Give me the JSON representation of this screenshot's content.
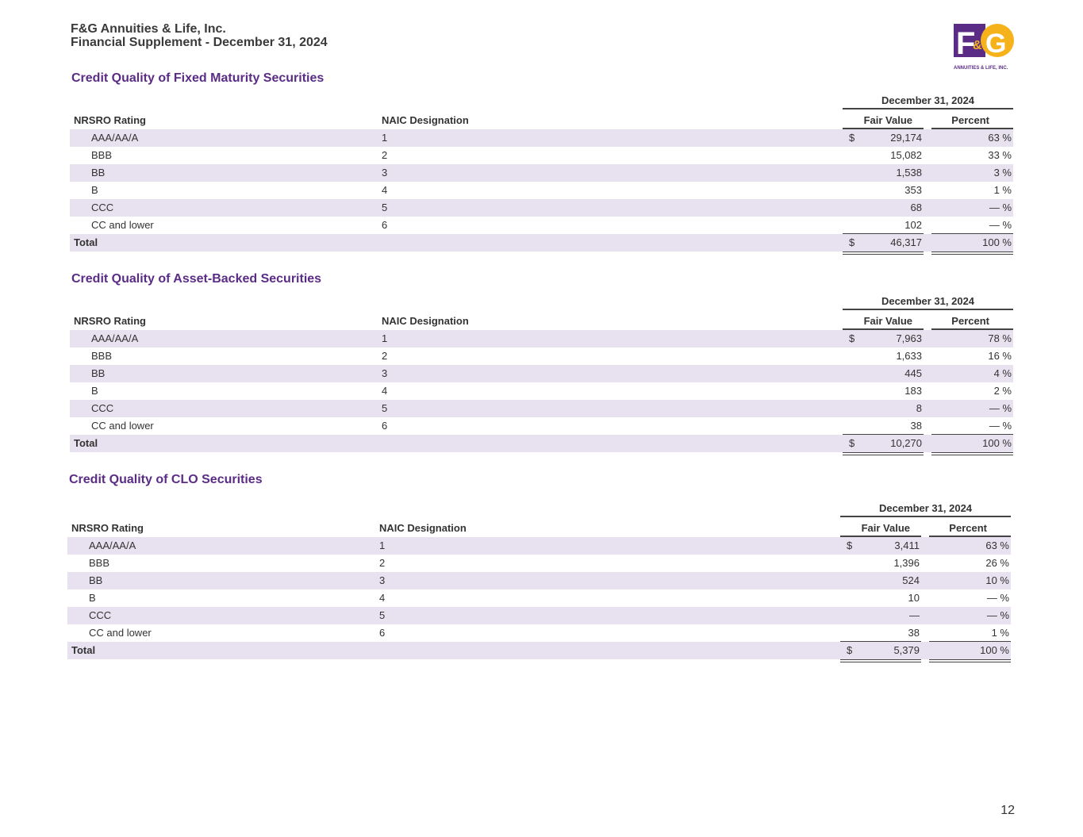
{
  "header": {
    "company": "F&G Annuities & Life, Inc.",
    "subtitle": "Financial Supplement - December 31, 2024"
  },
  "logo": {
    "text": "F&G",
    "tagline": "ANNUITIES & LIFE, INC.",
    "purple": "#5b2c86",
    "gold": "#f5b21b"
  },
  "page_number": "12",
  "sections": [
    {
      "title": "Credit Quality of Fixed Maturity Securities",
      "date": "December 31, 2024",
      "columns": {
        "rating": "NRSRO Rating",
        "naic": "NAIC Designation",
        "fv": "Fair Value",
        "pct": "Percent"
      },
      "rows": [
        {
          "rating": "AAA/AA/A",
          "naic": "1",
          "dollar": "$",
          "fv": "29,174",
          "pct": "63 %"
        },
        {
          "rating": "BBB",
          "naic": "2",
          "dollar": "",
          "fv": "15,082",
          "pct": "33 %"
        },
        {
          "rating": "BB",
          "naic": "3",
          "dollar": "",
          "fv": "1,538",
          "pct": "3 %"
        },
        {
          "rating": "B",
          "naic": "4",
          "dollar": "",
          "fv": "353",
          "pct": "1 %"
        },
        {
          "rating": "CCC",
          "naic": "5",
          "dollar": "",
          "fv": "68",
          "pct": "— %"
        },
        {
          "rating": "CC and lower",
          "naic": "6",
          "dollar": "",
          "fv": "102",
          "pct": "— %"
        }
      ],
      "total": {
        "rating": "Total",
        "naic": "",
        "dollar": "$",
        "fv": "46,317",
        "pct": "100 %"
      }
    },
    {
      "title": "Credit Quality of Asset-Backed Securities",
      "date": "December 31, 2024",
      "columns": {
        "rating": "NRSRO Rating",
        "naic": "NAIC Designation",
        "fv": "Fair Value",
        "pct": "Percent"
      },
      "rows": [
        {
          "rating": "AAA/AA/A",
          "naic": "1",
          "dollar": "$",
          "fv": "7,963",
          "pct": "78 %"
        },
        {
          "rating": "BBB",
          "naic": "2",
          "dollar": "",
          "fv": "1,633",
          "pct": "16 %"
        },
        {
          "rating": "BB",
          "naic": "3",
          "dollar": "",
          "fv": "445",
          "pct": "4 %"
        },
        {
          "rating": "B",
          "naic": "4",
          "dollar": "",
          "fv": "183",
          "pct": "2 %"
        },
        {
          "rating": "CCC",
          "naic": "5",
          "dollar": "",
          "fv": "8",
          "pct": "— %"
        },
        {
          "rating": "CC and lower",
          "naic": "6",
          "dollar": "",
          "fv": "38",
          "pct": "— %"
        }
      ],
      "total": {
        "rating": "Total",
        "naic": "",
        "dollar": "$",
        "fv": "10,270",
        "pct": "100 %"
      }
    },
    {
      "title": "Credit Quality of CLO Securities",
      "date": "December 31, 2024",
      "columns": {
        "rating": "NRSRO Rating",
        "naic": "NAIC Designation",
        "fv": "Fair Value",
        "pct": "Percent"
      },
      "rows": [
        {
          "rating": "AAA/AA/A",
          "naic": "1",
          "dollar": "$",
          "fv": "3,411",
          "pct": "63 %"
        },
        {
          "rating": "BBB",
          "naic": "2",
          "dollar": "",
          "fv": "1,396",
          "pct": "26 %"
        },
        {
          "rating": "BB",
          "naic": "3",
          "dollar": "",
          "fv": "524",
          "pct": "10 %"
        },
        {
          "rating": "B",
          "naic": "4",
          "dollar": "",
          "fv": "10",
          "pct": "— %"
        },
        {
          "rating": "CCC",
          "naic": "5",
          "dollar": "",
          "fv": "—",
          "pct": "— %"
        },
        {
          "rating": "CC and lower",
          "naic": "6",
          "dollar": "",
          "fv": "38",
          "pct": "1 %"
        }
      ],
      "total": {
        "rating": "Total",
        "naic": "",
        "dollar": "$",
        "fv": "5,379",
        "pct": "100 %"
      }
    }
  ]
}
